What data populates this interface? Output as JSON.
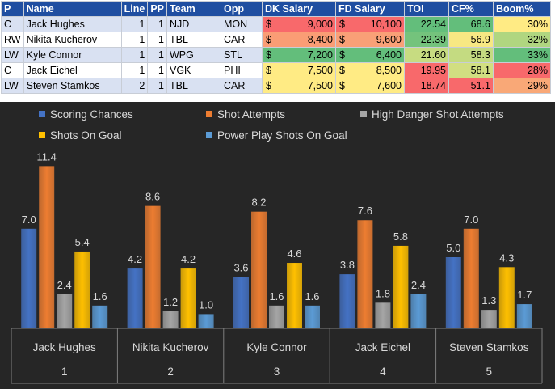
{
  "table": {
    "headers": [
      "P",
      "Name",
      "Line",
      "PP",
      "Team",
      "Opp",
      "DK Salary",
      "FD Salary",
      "TOI",
      "CF%",
      "Boom%"
    ],
    "currency_symbol": "$",
    "rows": [
      {
        "pos": "C",
        "name": "Jack Hughes",
        "line": "1",
        "pp": "1",
        "team": "NJD",
        "opp": "MON",
        "dk": "9,000",
        "fd": "10,100",
        "toi": "22.54",
        "cf": "68.6",
        "boom": "30%",
        "dk_color": "#f8696b",
        "fd_color": "#f8696b",
        "toi_color": "#63be7b",
        "cf_color": "#63be7b",
        "boom_color": "#ffeb84"
      },
      {
        "pos": "RW",
        "name": "Nikita Kucherov",
        "line": "1",
        "pp": "1",
        "team": "TBL",
        "opp": "CAR",
        "dk": "8,400",
        "fd": "9,600",
        "toi": "22.39",
        "cf": "56.9",
        "boom": "32%",
        "dk_color": "#fa9d75",
        "fd_color": "#f9a077",
        "toi_color": "#74c37c",
        "cf_color": "#f7e883",
        "boom_color": "#b0d680"
      },
      {
        "pos": "LW",
        "name": "Kyle Connor",
        "line": "1",
        "pp": "1",
        "team": "WPG",
        "opp": "STL",
        "dk": "7,200",
        "fd": "6,400",
        "toi": "21.60",
        "cf": "58.3",
        "boom": "33%",
        "dk_color": "#63be7b",
        "fd_color": "#63be7b",
        "toi_color": "#c7dc81",
        "cf_color": "#c4db81",
        "boom_color": "#63be7b"
      },
      {
        "pos": "C",
        "name": "Jack Eichel",
        "line": "1",
        "pp": "1",
        "team": "VGK",
        "opp": "PHI",
        "dk": "7,500",
        "fd": "8,500",
        "toi": "19.95",
        "cf": "58.1",
        "boom": "28%",
        "dk_color": "#ffeb84",
        "fd_color": "#ffeb84",
        "toi_color": "#f8696b",
        "cf_color": "#d1de81",
        "boom_color": "#f8696b"
      },
      {
        "pos": "LW",
        "name": "Steven Stamkos",
        "line": "2",
        "pp": "1",
        "team": "TBL",
        "opp": "CAR",
        "dk": "7,500",
        "fd": "7,600",
        "toi": "18.74",
        "cf": "51.1",
        "boom": "29%",
        "dk_color": "#ffeb84",
        "fd_color": "#ffeb84",
        "toi_color": "#f8696b",
        "cf_color": "#f8696b",
        "boom_color": "#f9a877"
      }
    ]
  },
  "chart_data": {
    "type": "bar",
    "categories": [
      "Jack Hughes",
      "Nikita Kucherov",
      "Kyle Connor",
      "Jack Eichel",
      "Steven Stamkos"
    ],
    "category_groups": [
      "1",
      "2",
      "3",
      "4",
      "5"
    ],
    "series": [
      {
        "name": "Scoring Chances",
        "color": "#4472c4",
        "values": [
          7.0,
          4.2,
          3.6,
          3.8,
          5.0
        ]
      },
      {
        "name": "Shot Attempts",
        "color": "#ed7d31",
        "values": [
          11.4,
          8.6,
          8.2,
          7.6,
          7.0
        ]
      },
      {
        "name": "High Danger Shot Attempts",
        "color": "#a5a5a5",
        "values": [
          2.4,
          1.2,
          1.6,
          1.8,
          1.3
        ]
      },
      {
        "name": "Shots On Goal",
        "color": "#ffc000",
        "values": [
          5.4,
          4.2,
          4.6,
          5.8,
          4.3
        ]
      },
      {
        "name": "Power Play Shots On Goal",
        "color": "#5b9bd5",
        "values": [
          1.6,
          1.0,
          1.6,
          2.4,
          1.7
        ]
      }
    ],
    "ylim": [
      0,
      12.5
    ],
    "legend": "top",
    "grid": false,
    "title": "",
    "xlabel": "",
    "ylabel": ""
  }
}
